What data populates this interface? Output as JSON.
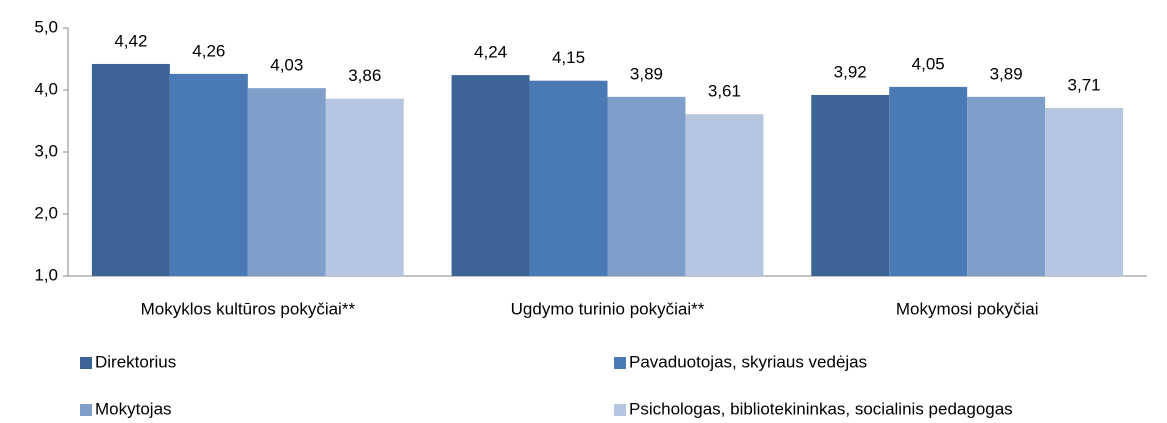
{
  "chart_data": {
    "type": "bar",
    "categories": [
      "Mokyklos kultūros pokyčiai**",
      "Ugdymo turinio pokyčiai**",
      "Mokymosi pokyčiai"
    ],
    "series": [
      {
        "name": "Direktorius",
        "color": "#3c6496",
        "values": [
          4.42,
          4.24,
          3.92
        ],
        "value_labels": [
          "4,42",
          "4,24",
          "3,92"
        ]
      },
      {
        "name": "Pavaduotojas, skyriaus vedėjas",
        "color": "#4a7ab5",
        "values": [
          4.26,
          4.15,
          4.05
        ],
        "value_labels": [
          "4,26",
          "4,15",
          "4,05"
        ]
      },
      {
        "name": "Mokytojas",
        "color": "#7f9ec9",
        "values": [
          4.03,
          3.89,
          3.89
        ],
        "value_labels": [
          "4,03",
          "3,89",
          "3,89"
        ]
      },
      {
        "name": "Psichologas, bibliotekininkas, socialinis pedagogas",
        "color": "#b7c6e0",
        "values": [
          3.86,
          3.61,
          3.71
        ],
        "value_labels": [
          "3,86",
          "3,61",
          "3,71"
        ]
      }
    ],
    "ylim": [
      1,
      5
    ],
    "yticks": [
      {
        "value": 1,
        "label": "1,0"
      },
      {
        "value": 2,
        "label": "2,0"
      },
      {
        "value": 3,
        "label": "3,0"
      },
      {
        "value": 4,
        "label": "4,0"
      },
      {
        "value": 5,
        "label": "5,0"
      }
    ],
    "grid": false,
    "legend": "bottom"
  }
}
